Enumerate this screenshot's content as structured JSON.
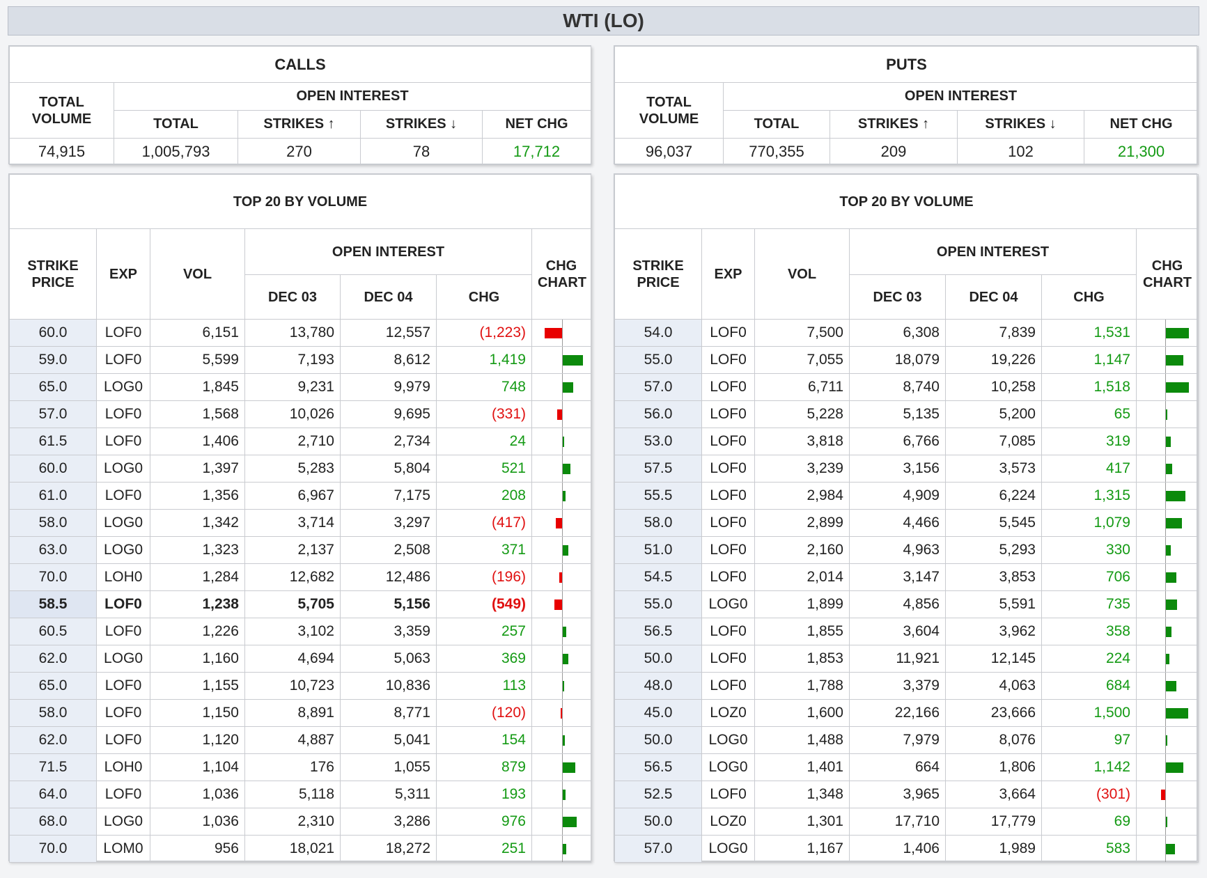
{
  "header": {
    "title": "WTI (LO)"
  },
  "labels": {
    "total_volume": "TOTAL VOLUME",
    "open_interest": "OPEN INTEREST",
    "total": "TOTAL",
    "strikes_up": "STRIKES ↑",
    "strikes_down": "STRIKES ↓",
    "net_chg": "NET CHG",
    "top20": "TOP 20 BY VOLUME",
    "strike_price": "STRIKE PRICE",
    "exp": "EXP",
    "vol": "VOL",
    "dec03": "DEC 03",
    "dec04": "DEC 04",
    "chg": "CHG",
    "chg_chart": "CHG CHART"
  },
  "colors": {
    "positive": "#149a14",
    "negative": "#e01010",
    "bar_up": "#0c8a0c",
    "bar_down": "#e80000"
  },
  "calls": {
    "title": "CALLS",
    "summary": {
      "total_volume": "74,915",
      "oi_total": "1,005,793",
      "strikes_up": "270",
      "strikes_down": "78",
      "net_chg": "17,712"
    },
    "rows": [
      {
        "strike": "60.0",
        "exp": "LOF0",
        "vol": "6,151",
        "dec03": "13,780",
        "dec04": "12,557",
        "chg": "(1,223)",
        "chg_value": -1223
      },
      {
        "strike": "59.0",
        "exp": "LOF0",
        "vol": "5,599",
        "dec03": "7,193",
        "dec04": "8,612",
        "chg": "1,419",
        "chg_value": 1419
      },
      {
        "strike": "65.0",
        "exp": "LOG0",
        "vol": "1,845",
        "dec03": "9,231",
        "dec04": "9,979",
        "chg": "748",
        "chg_value": 748
      },
      {
        "strike": "57.0",
        "exp": "LOF0",
        "vol": "1,568",
        "dec03": "10,026",
        "dec04": "9,695",
        "chg": "(331)",
        "chg_value": -331
      },
      {
        "strike": "61.5",
        "exp": "LOF0",
        "vol": "1,406",
        "dec03": "2,710",
        "dec04": "2,734",
        "chg": "24",
        "chg_value": 24
      },
      {
        "strike": "60.0",
        "exp": "LOG0",
        "vol": "1,397",
        "dec03": "5,283",
        "dec04": "5,804",
        "chg": "521",
        "chg_value": 521
      },
      {
        "strike": "61.0",
        "exp": "LOF0",
        "vol": "1,356",
        "dec03": "6,967",
        "dec04": "7,175",
        "chg": "208",
        "chg_value": 208
      },
      {
        "strike": "58.0",
        "exp": "LOG0",
        "vol": "1,342",
        "dec03": "3,714",
        "dec04": "3,297",
        "chg": "(417)",
        "chg_value": -417
      },
      {
        "strike": "63.0",
        "exp": "LOG0",
        "vol": "1,323",
        "dec03": "2,137",
        "dec04": "2,508",
        "chg": "371",
        "chg_value": 371
      },
      {
        "strike": "70.0",
        "exp": "LOH0",
        "vol": "1,284",
        "dec03": "12,682",
        "dec04": "12,486",
        "chg": "(196)",
        "chg_value": -196
      },
      {
        "strike": "58.5",
        "exp": "LOF0",
        "vol": "1,238",
        "dec03": "5,705",
        "dec04": "5,156",
        "chg": "(549)",
        "chg_value": -549,
        "bold": true
      },
      {
        "strike": "60.5",
        "exp": "LOF0",
        "vol": "1,226",
        "dec03": "3,102",
        "dec04": "3,359",
        "chg": "257",
        "chg_value": 257
      },
      {
        "strike": "62.0",
        "exp": "LOG0",
        "vol": "1,160",
        "dec03": "4,694",
        "dec04": "5,063",
        "chg": "369",
        "chg_value": 369
      },
      {
        "strike": "65.0",
        "exp": "LOF0",
        "vol": "1,155",
        "dec03": "10,723",
        "dec04": "10,836",
        "chg": "113",
        "chg_value": 113
      },
      {
        "strike": "58.0",
        "exp": "LOF0",
        "vol": "1,150",
        "dec03": "8,891",
        "dec04": "8,771",
        "chg": "(120)",
        "chg_value": -120
      },
      {
        "strike": "62.0",
        "exp": "LOF0",
        "vol": "1,120",
        "dec03": "4,887",
        "dec04": "5,041",
        "chg": "154",
        "chg_value": 154
      },
      {
        "strike": "71.5",
        "exp": "LOH0",
        "vol": "1,104",
        "dec03": "176",
        "dec04": "1,055",
        "chg": "879",
        "chg_value": 879
      },
      {
        "strike": "64.0",
        "exp": "LOF0",
        "vol": "1,036",
        "dec03": "5,118",
        "dec04": "5,311",
        "chg": "193",
        "chg_value": 193
      },
      {
        "strike": "68.0",
        "exp": "LOG0",
        "vol": "1,036",
        "dec03": "2,310",
        "dec04": "3,286",
        "chg": "976",
        "chg_value": 976
      },
      {
        "strike": "70.0",
        "exp": "LOM0",
        "vol": "956",
        "dec03": "18,021",
        "dec04": "18,272",
        "chg": "251",
        "chg_value": 251
      }
    ]
  },
  "puts": {
    "title": "PUTS",
    "summary": {
      "total_volume": "96,037",
      "oi_total": "770,355",
      "strikes_up": "209",
      "strikes_down": "102",
      "net_chg": "21,300"
    },
    "rows": [
      {
        "strike": "54.0",
        "exp": "LOF0",
        "vol": "7,500",
        "dec03": "6,308",
        "dec04": "7,839",
        "chg": "1,531",
        "chg_value": 1531
      },
      {
        "strike": "55.0",
        "exp": "LOF0",
        "vol": "7,055",
        "dec03": "18,079",
        "dec04": "19,226",
        "chg": "1,147",
        "chg_value": 1147
      },
      {
        "strike": "57.0",
        "exp": "LOF0",
        "vol": "6,711",
        "dec03": "8,740",
        "dec04": "10,258",
        "chg": "1,518",
        "chg_value": 1518
      },
      {
        "strike": "56.0",
        "exp": "LOF0",
        "vol": "5,228",
        "dec03": "5,135",
        "dec04": "5,200",
        "chg": "65",
        "chg_value": 65
      },
      {
        "strike": "53.0",
        "exp": "LOF0",
        "vol": "3,818",
        "dec03": "6,766",
        "dec04": "7,085",
        "chg": "319",
        "chg_value": 319
      },
      {
        "strike": "57.5",
        "exp": "LOF0",
        "vol": "3,239",
        "dec03": "3,156",
        "dec04": "3,573",
        "chg": "417",
        "chg_value": 417
      },
      {
        "strike": "55.5",
        "exp": "LOF0",
        "vol": "2,984",
        "dec03": "4,909",
        "dec04": "6,224",
        "chg": "1,315",
        "chg_value": 1315
      },
      {
        "strike": "58.0",
        "exp": "LOF0",
        "vol": "2,899",
        "dec03": "4,466",
        "dec04": "5,545",
        "chg": "1,079",
        "chg_value": 1079
      },
      {
        "strike": "51.0",
        "exp": "LOF0",
        "vol": "2,160",
        "dec03": "4,963",
        "dec04": "5,293",
        "chg": "330",
        "chg_value": 330
      },
      {
        "strike": "54.5",
        "exp": "LOF0",
        "vol": "2,014",
        "dec03": "3,147",
        "dec04": "3,853",
        "chg": "706",
        "chg_value": 706
      },
      {
        "strike": "55.0",
        "exp": "LOG0",
        "vol": "1,899",
        "dec03": "4,856",
        "dec04": "5,591",
        "chg": "735",
        "chg_value": 735
      },
      {
        "strike": "56.5",
        "exp": "LOF0",
        "vol": "1,855",
        "dec03": "3,604",
        "dec04": "3,962",
        "chg": "358",
        "chg_value": 358
      },
      {
        "strike": "50.0",
        "exp": "LOF0",
        "vol": "1,853",
        "dec03": "11,921",
        "dec04": "12,145",
        "chg": "224",
        "chg_value": 224
      },
      {
        "strike": "48.0",
        "exp": "LOF0",
        "vol": "1,788",
        "dec03": "3,379",
        "dec04": "4,063",
        "chg": "684",
        "chg_value": 684
      },
      {
        "strike": "45.0",
        "exp": "LOZ0",
        "vol": "1,600",
        "dec03": "22,166",
        "dec04": "23,666",
        "chg": "1,500",
        "chg_value": 1500
      },
      {
        "strike": "50.0",
        "exp": "LOG0",
        "vol": "1,488",
        "dec03": "7,979",
        "dec04": "8,076",
        "chg": "97",
        "chg_value": 97
      },
      {
        "strike": "56.5",
        "exp": "LOG0",
        "vol": "1,401",
        "dec03": "664",
        "dec04": "1,806",
        "chg": "1,142",
        "chg_value": 1142
      },
      {
        "strike": "52.5",
        "exp": "LOF0",
        "vol": "1,348",
        "dec03": "3,965",
        "dec04": "3,664",
        "chg": "(301)",
        "chg_value": -301
      },
      {
        "strike": "50.0",
        "exp": "LOZ0",
        "vol": "1,301",
        "dec03": "17,710",
        "dec04": "17,779",
        "chg": "69",
        "chg_value": 69
      },
      {
        "strike": "57.0",
        "exp": "LOG0",
        "vol": "1,167",
        "dec03": "1,406",
        "dec04": "1,989",
        "chg": "583",
        "chg_value": 583
      }
    ]
  }
}
